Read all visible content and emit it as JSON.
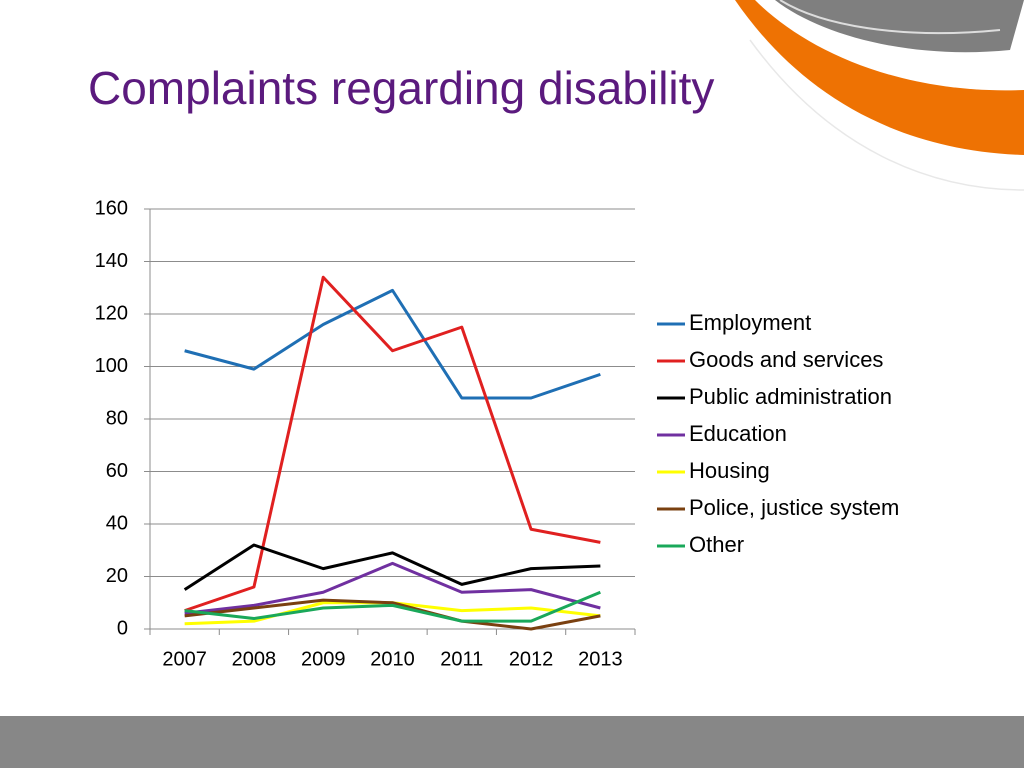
{
  "chart_data": {
    "type": "line",
    "title": "Complaints regarding disability",
    "categories": [
      "2007",
      "2008",
      "2009",
      "2010",
      "2011",
      "2012",
      "2013"
    ],
    "series": [
      {
        "name": "Employment",
        "color": "#1f6fb4",
        "values": [
          106,
          99,
          116,
          129,
          88,
          88,
          97
        ]
      },
      {
        "name": "Goods and services",
        "color": "#e02020",
        "values": [
          7,
          16,
          134,
          106,
          115,
          38,
          33
        ]
      },
      {
        "name": "Public administration",
        "color": "#000000",
        "values": [
          15,
          32,
          23,
          29,
          17,
          23,
          24
        ]
      },
      {
        "name": "Education",
        "color": "#7030a0",
        "values": [
          6,
          9,
          14,
          25,
          14,
          15,
          8
        ]
      },
      {
        "name": "Housing",
        "color": "#ffff00",
        "values": [
          2,
          3,
          10,
          10,
          7,
          8,
          5
        ]
      },
      {
        "name": "Police, justice system",
        "color": "#7a4010",
        "values": [
          5,
          8,
          11,
          10,
          3,
          0,
          5
        ]
      },
      {
        "name": "Other",
        "color": "#1aa85a",
        "values": [
          7,
          4,
          8,
          9,
          3,
          3,
          14
        ]
      }
    ],
    "ylim": [
      0,
      160
    ],
    "yticks": [
      0,
      20,
      40,
      60,
      80,
      100,
      120,
      140,
      160
    ],
    "grid": true,
    "legend": "right"
  }
}
